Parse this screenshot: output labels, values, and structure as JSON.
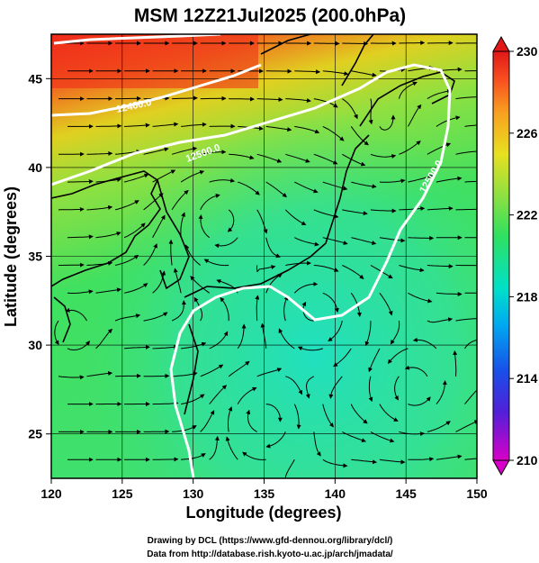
{
  "title": "MSM 12Z21Jul2025 (200.0hPa)",
  "map": {
    "lon_range": [
      120,
      150
    ],
    "lat_range": [
      22.5,
      47.5
    ],
    "x_label": "Longitude (degrees)",
    "y_label": "Latitude  (degrees)",
    "x_ticks": [
      "120",
      "125",
      "130",
      "135",
      "140",
      "145",
      "150"
    ],
    "y_ticks": [
      "25",
      "30",
      "35",
      "40",
      "45"
    ],
    "grid": true,
    "field": "temperature",
    "overlay": "streamlines",
    "contour_labels": [
      "12400.0",
      "12500.0",
      "12500.0"
    ]
  },
  "colorbar": {
    "min": 210,
    "max": 230,
    "tick_labels": [
      "230",
      "226",
      "222",
      "218",
      "214",
      "210"
    ],
    "colors": [
      "#d800c8",
      "#3040e0",
      "#00a0f0",
      "#00e0c0",
      "#40e060",
      "#a8e040",
      "#e8e020",
      "#f8a020",
      "#f85020",
      "#e02818"
    ]
  },
  "credits": {
    "line1": "Drawing by DCL (https://www.gfd-dennou.org/library/dcl/)",
    "line2": "Data from http://database.rish.kyoto-u.ac.jp/arch/jmadata/"
  }
}
